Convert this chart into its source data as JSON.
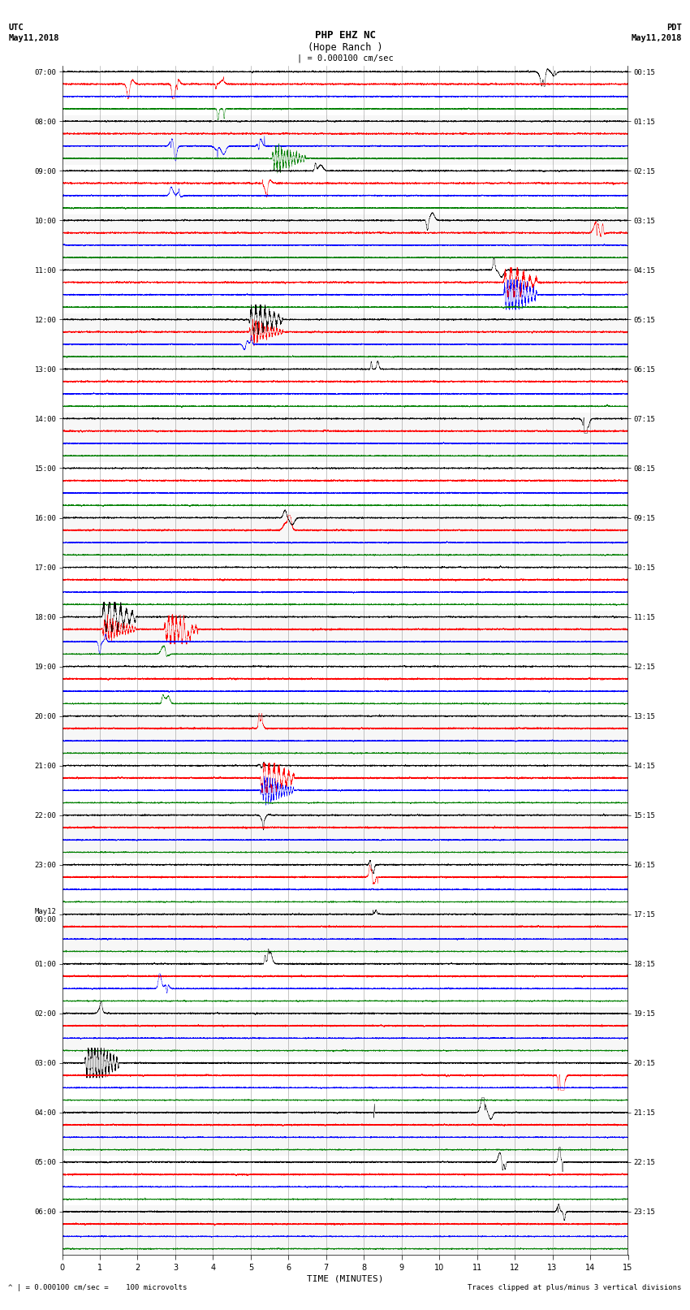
{
  "title_line1": "PHP EHZ NC",
  "title_line2": "(Hope Ranch )",
  "scale_label": "| = 0.000100 cm/sec",
  "left_header_line1": "UTC",
  "left_header_line2": "May11,2018",
  "right_header_line1": "PDT",
  "right_header_line2": "May11,2018",
  "xlabel": "TIME (MINUTES)",
  "footer_left": "^ | = 0.000100 cm/sec =    100 microvolts",
  "footer_right": "Traces clipped at plus/minus 3 vertical divisions",
  "utc_hour_labels": [
    "07:00",
    "08:00",
    "09:00",
    "10:00",
    "11:00",
    "12:00",
    "13:00",
    "14:00",
    "15:00",
    "16:00",
    "17:00",
    "18:00",
    "19:00",
    "20:00",
    "21:00",
    "22:00",
    "23:00",
    "May12\n00:00",
    "01:00",
    "02:00",
    "03:00",
    "04:00",
    "05:00",
    "06:00"
  ],
  "pdt_hour_labels": [
    "00:15",
    "01:15",
    "02:15",
    "03:15",
    "04:15",
    "05:15",
    "06:15",
    "07:15",
    "08:15",
    "09:15",
    "10:15",
    "11:15",
    "12:15",
    "13:15",
    "14:15",
    "15:15",
    "16:15",
    "17:15",
    "18:15",
    "19:15",
    "20:15",
    "21:15",
    "22:15",
    "23:15"
  ],
  "colors": [
    "black",
    "red",
    "blue",
    "green"
  ],
  "n_rows": 96,
  "n_samples": 9000,
  "x_min": 0,
  "x_max": 15,
  "bg_color": "white",
  "line_width": 0.3,
  "noise_amplitude": 0.06,
  "figsize": [
    8.5,
    16.13
  ],
  "dpi": 100,
  "rows_per_hour": 4,
  "n_hours": 24
}
